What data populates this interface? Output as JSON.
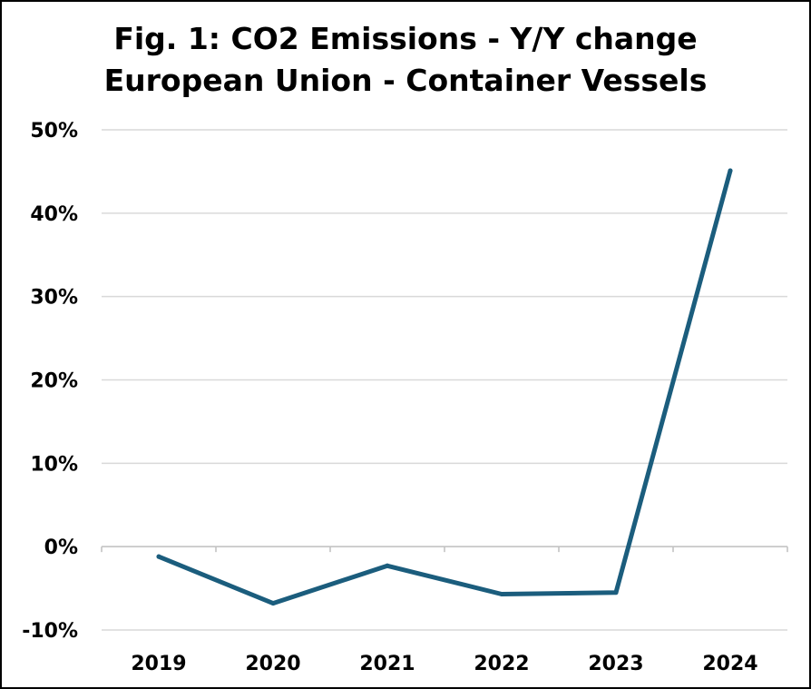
{
  "chart_data": {
    "type": "line",
    "title_lines": [
      "Fig. 1: CO2 Emissions - Y/Y change",
      "European Union - Container Vessels"
    ],
    "xlabel": "",
    "ylabel": "",
    "categories": [
      "2019",
      "2020",
      "2021",
      "2022",
      "2023",
      "2024"
    ],
    "series": [
      {
        "name": "CO2 Emissions Y/Y change",
        "values": [
          -1.2,
          -6.8,
          -2.3,
          -5.7,
          -5.5,
          45.1
        ],
        "color": "#1b5d7d"
      }
    ],
    "ylim": [
      -10,
      50
    ],
    "yticks": [
      -10,
      0,
      10,
      20,
      30,
      40,
      50
    ],
    "ytick_labels": [
      "-10%",
      "0%",
      "10%",
      "20%",
      "30%",
      "40%",
      "50%"
    ],
    "grid": true,
    "gridline_color": "#d9d9d9",
    "axis_color": "#bfbfbf"
  }
}
